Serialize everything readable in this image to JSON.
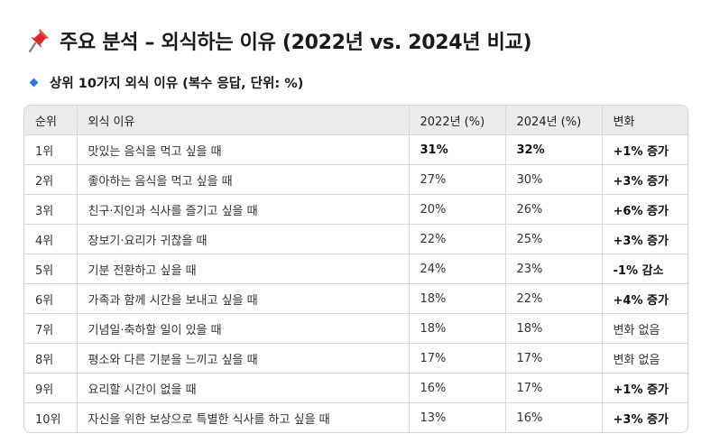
{
  "header": {
    "title": "주요 분석 – 외식하는 이유 (2022년 vs. 2024년 비교)",
    "pin_icon": "pushpin-icon",
    "subtitle": "상위 10가지 외식 이유 (복수 응답, 단위: %)",
    "bullet_icon": "blue-diamond-icon"
  },
  "colors": {
    "pin_red": "#d92b2b",
    "diamond_blue": "#2f7bd8",
    "header_bg": "#ebebeb",
    "border": "#d9d9d9"
  },
  "table": {
    "columns": [
      "순위",
      "외식 이유",
      "2022년 (%)",
      "2024년 (%)",
      "변화"
    ],
    "rows": [
      {
        "rank": "1위",
        "reason": "맛있는 음식을 먹고 싶을 때",
        "y2022": "31%",
        "y2024": "32%",
        "change": "+1% 증가",
        "bold_values": true,
        "bold_change": true
      },
      {
        "rank": "2위",
        "reason": "좋아하는 음식을 먹고 싶을 때",
        "y2022": "27%",
        "y2024": "30%",
        "change": "+3% 증가",
        "bold_values": false,
        "bold_change": true
      },
      {
        "rank": "3위",
        "reason": "친구·지인과 식사를 즐기고 싶을 때",
        "y2022": "20%",
        "y2024": "26%",
        "change": "+6% 증가",
        "bold_values": false,
        "bold_change": true
      },
      {
        "rank": "4위",
        "reason": "장보기·요리가 귀찮을 때",
        "y2022": "22%",
        "y2024": "25%",
        "change": "+3% 증가",
        "bold_values": false,
        "bold_change": true
      },
      {
        "rank": "5위",
        "reason": "기분 전환하고 싶을 때",
        "y2022": "24%",
        "y2024": "23%",
        "change": "-1% 감소",
        "bold_values": false,
        "bold_change": true
      },
      {
        "rank": "6위",
        "reason": "가족과 함께 시간을 보내고 싶을 때",
        "y2022": "18%",
        "y2024": "22%",
        "change": "+4% 증가",
        "bold_values": false,
        "bold_change": true
      },
      {
        "rank": "7위",
        "reason": "기념일·축하할 일이 있을 때",
        "y2022": "18%",
        "y2024": "18%",
        "change": "변화 없음",
        "bold_values": false,
        "bold_change": false
      },
      {
        "rank": "8위",
        "reason": "평소와 다른 기분을 느끼고 싶을 때",
        "y2022": "17%",
        "y2024": "17%",
        "change": "변화 없음",
        "bold_values": false,
        "bold_change": false
      },
      {
        "rank": "9위",
        "reason": "요리할 시간이 없을 때",
        "y2022": "16%",
        "y2024": "17%",
        "change": "+1% 증가",
        "bold_values": false,
        "bold_change": true
      },
      {
        "rank": "10위",
        "reason": "자신을 위한 보상으로 특별한 식사를 하고 싶을 때",
        "y2022": "13%",
        "y2024": "16%",
        "change": "+3% 증가",
        "bold_values": false,
        "bold_change": true
      }
    ]
  }
}
